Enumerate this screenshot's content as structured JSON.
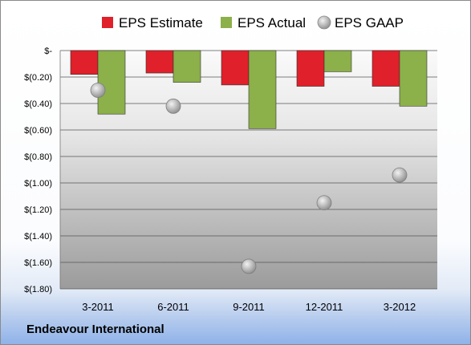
{
  "chart_data": {
    "type": "bar",
    "title": "",
    "categories": [
      "3-2011",
      "6-2011",
      "9-2011",
      "12-2011",
      "3-2012"
    ],
    "series": [
      {
        "name": "EPS Estimate",
        "kind": "bar",
        "color": "#e0202a",
        "values": [
          -0.18,
          -0.17,
          -0.26,
          -0.27,
          -0.27
        ]
      },
      {
        "name": "EPS Actual",
        "kind": "bar",
        "color": "#8cb04a",
        "values": [
          -0.48,
          -0.24,
          -0.59,
          -0.16,
          -0.42
        ]
      },
      {
        "name": "EPS GAAP",
        "kind": "scatter",
        "color": "#a6a6a6",
        "values": [
          -0.3,
          -0.42,
          -1.63,
          -1.15,
          -0.94
        ]
      }
    ],
    "y_ticks": [
      0,
      -0.2,
      -0.4,
      -0.6,
      -0.8,
      -1.0,
      -1.2,
      -1.4,
      -1.6,
      -1.8
    ],
    "y_tick_labels": [
      "$-",
      "$(0.20)",
      "$(0.40)",
      "$(0.60)",
      "$(0.80)",
      "$(1.00)",
      "$(1.20)",
      "$(1.40)",
      "$(1.60)",
      "$(1.80)"
    ],
    "ylim": [
      -1.8,
      0
    ],
    "grid": true,
    "legend_position": "top"
  },
  "footer": {
    "company": "Endeavour International"
  }
}
